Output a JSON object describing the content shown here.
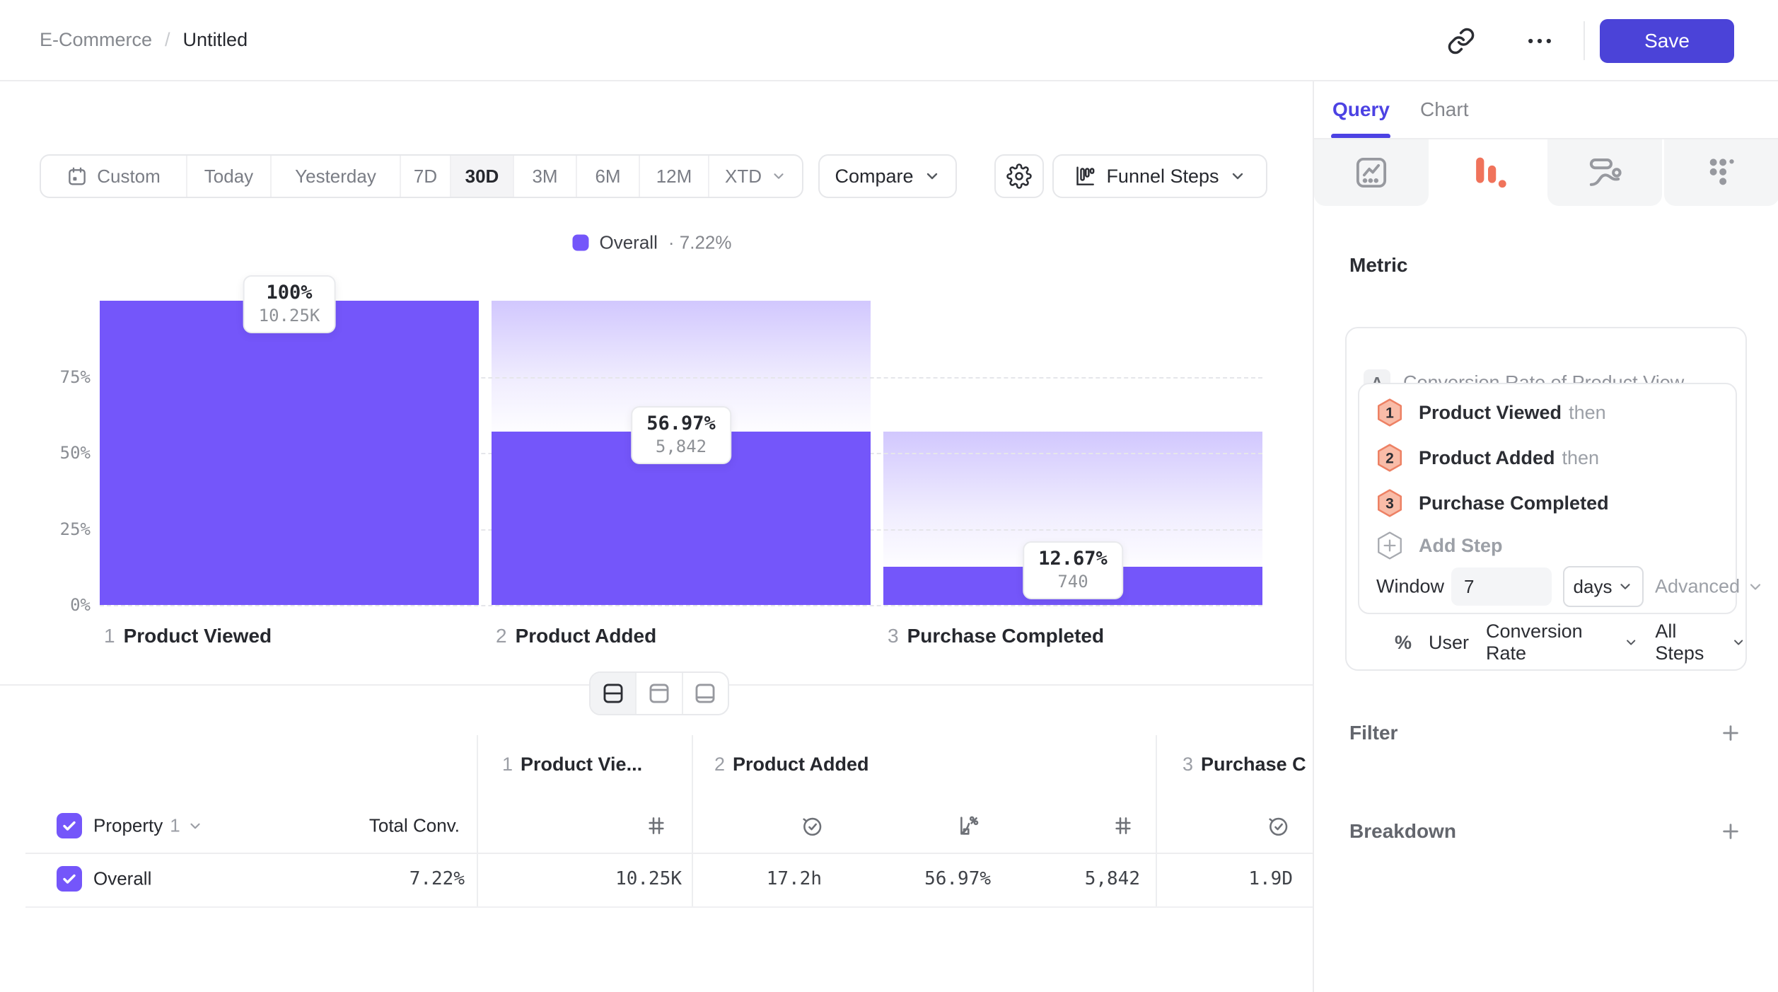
{
  "topbar": {
    "breadcrumb_parent": "E-Commerce",
    "breadcrumb_separator": "/",
    "breadcrumb_current": "Untitled",
    "save_label": "Save"
  },
  "toolbar": {
    "ranges": [
      {
        "label": "Custom"
      },
      {
        "label": "Today"
      },
      {
        "label": "Yesterday"
      },
      {
        "label": "7D"
      },
      {
        "label": "30D"
      },
      {
        "label": "3M"
      },
      {
        "label": "6M"
      },
      {
        "label": "12M"
      },
      {
        "label": "XTD"
      }
    ],
    "selected_range": "30D",
    "compare_label": "Compare",
    "view_label": "Funnel Steps"
  },
  "chart_data": {
    "type": "bar",
    "subtype": "funnel",
    "legend": {
      "series": "Overall",
      "separator": "·",
      "value_label": "7.22%"
    },
    "steps": [
      {
        "index": "1",
        "name": "Product Viewed",
        "conversion_pct": 100,
        "pct_label": "100%",
        "count_label": "10.25K"
      },
      {
        "index": "2",
        "name": "Product Added",
        "conversion_pct": 56.97,
        "pct_label": "56.97%",
        "count_label": "5,842"
      },
      {
        "index": "3",
        "name": "Purchase Completed",
        "conversion_pct": 12.67,
        "pct_label": "12.67%",
        "count_label": "740"
      }
    ],
    "y_ticks": [
      {
        "pct": 75,
        "label": "75%"
      },
      {
        "pct": 50,
        "label": "50%"
      },
      {
        "pct": 25,
        "label": "25%"
      },
      {
        "pct": 0,
        "label": "0%"
      }
    ],
    "ylim": [
      0,
      100
    ],
    "grid": "dashed horizontal",
    "legend_position": "top-center",
    "bar_color": "#7456FA"
  },
  "view_toggle": {
    "options": [
      "split-view",
      "top-panel-view",
      "bottom-panel-view"
    ],
    "selected": "split-view"
  },
  "table": {
    "property_header": {
      "label": "Property",
      "index": "1"
    },
    "total_conv_header": "Total Conv.",
    "column_groups": [
      {
        "index": "1",
        "name": "Product Vie...",
        "metric_icons": [
          "count"
        ]
      },
      {
        "index": "2",
        "name": "Product Added",
        "metric_icons": [
          "time",
          "conversion",
          "count"
        ]
      },
      {
        "index": "3",
        "name": "Purchase C",
        "metric_icons": [
          "time"
        ]
      }
    ],
    "rows": [
      {
        "name": "Overall",
        "total_conv": "7.22%",
        "cells": [
          "10.25K",
          "17.2h",
          "56.97%",
          "5,842",
          "1.9D"
        ]
      }
    ]
  },
  "query_panel": {
    "tabs": [
      {
        "label": "Query"
      },
      {
        "label": "Chart"
      }
    ],
    "active_tab": "Query",
    "chart_types": [
      "line-chart",
      "funnel-chart",
      "flow-chart",
      "dots-grid"
    ],
    "selected_chart_type": "funnel-chart",
    "metric_section": {
      "heading": "Metric",
      "metric_badge": "A",
      "metric_title": "Conversion Rate of Product View...",
      "steps": [
        {
          "num": "1",
          "label": "Product Viewed",
          "suffix": "then"
        },
        {
          "num": "2",
          "label": "Product Added",
          "suffix": "then"
        },
        {
          "num": "3",
          "label": "Purchase Completed",
          "suffix": ""
        }
      ],
      "add_step_label": "Add Step",
      "window": {
        "label": "Window",
        "value": "7",
        "unit": "days",
        "advanced_label": "Advanced"
      },
      "measured_as": {
        "symbol": "%",
        "entity": "User",
        "metric": "Conversion Rate",
        "scope": "All Steps"
      }
    },
    "filter": {
      "label": "Filter"
    },
    "breakdown": {
      "label": "Breakdown"
    }
  },
  "colors": {
    "accent_purple": "#7456FA",
    "save_indigo": "#4B43D8",
    "active_tab_indigo": "#4C42E3",
    "funnel_icon_coral": "#F0735B",
    "step_badge_fill": "#F9BCA8",
    "step_badge_stroke": "#ED8164"
  }
}
